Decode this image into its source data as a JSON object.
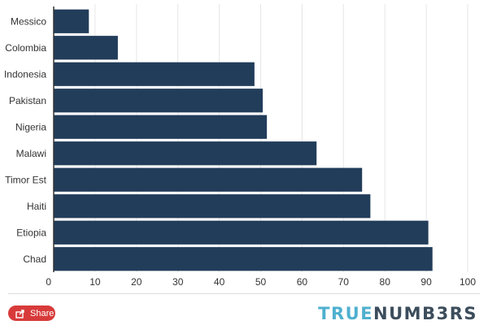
{
  "chart_data": {
    "type": "bar",
    "orientation": "horizontal",
    "categories": [
      "Messico",
      "Colombia",
      "Indonesia",
      "Pakistan",
      "Nigeria",
      "Malawi",
      "Timor Est",
      "Haiti",
      "Etiopia",
      "Chad"
    ],
    "values": [
      8.5,
      15.5,
      48.5,
      50.5,
      51.5,
      63.5,
      74.5,
      76.5,
      90.5,
      91.5
    ],
    "xlim": [
      0,
      100
    ],
    "xticks": [
      0,
      10,
      20,
      30,
      40,
      50,
      60,
      70,
      80,
      90,
      100
    ],
    "grid": true,
    "bar_color": "#223d5a",
    "title": "",
    "xlabel": "",
    "ylabel": ""
  },
  "footer": {
    "share_label": "Share",
    "share_color": "#d83a3a",
    "brand_part1": "TRUE",
    "brand_part2": "NUMB3RS",
    "brand_color1": "#4fb0cf",
    "brand_color2": "#3c4d5c"
  }
}
